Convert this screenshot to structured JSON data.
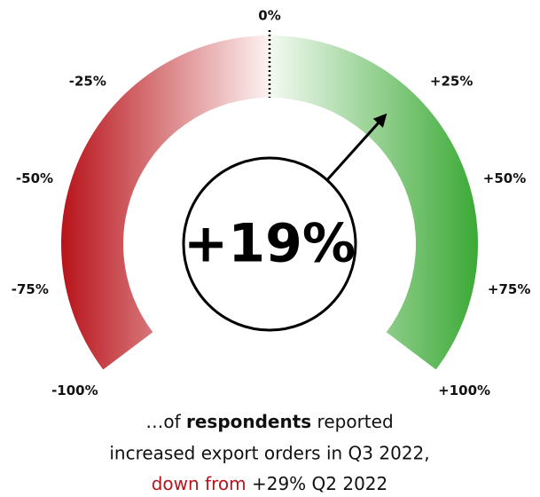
{
  "chart_data": {
    "type": "gauge",
    "value": 19,
    "value_label": "+19%",
    "min": {
      "value": -100,
      "label": "-100%"
    },
    "max": {
      "value": 100,
      "label": "+100%"
    },
    "ticks": [
      {
        "value": -100,
        "label": "-100%"
      },
      {
        "value": -75,
        "label": "-75%"
      },
      {
        "value": -50,
        "label": "-50%"
      },
      {
        "value": -25,
        "label": "-25%"
      },
      {
        "value": 0,
        "label": "0%"
      },
      {
        "value": 25,
        "label": "+25%"
      },
      {
        "value": 50,
        "label": "+50%"
      },
      {
        "value": 75,
        "label": "+75%"
      },
      {
        "value": 100,
        "label": "+100%"
      }
    ],
    "negative_color": "#b8141b",
    "positive_color": "#3aa935",
    "caption": {
      "line1_before": "…of ",
      "line1_bold": "respondents",
      "line1_after": " reported",
      "line2": "increased export orders in Q3 2022,",
      "line3_red": "down from",
      "line3_after": " +29% Q2 2022"
    }
  }
}
